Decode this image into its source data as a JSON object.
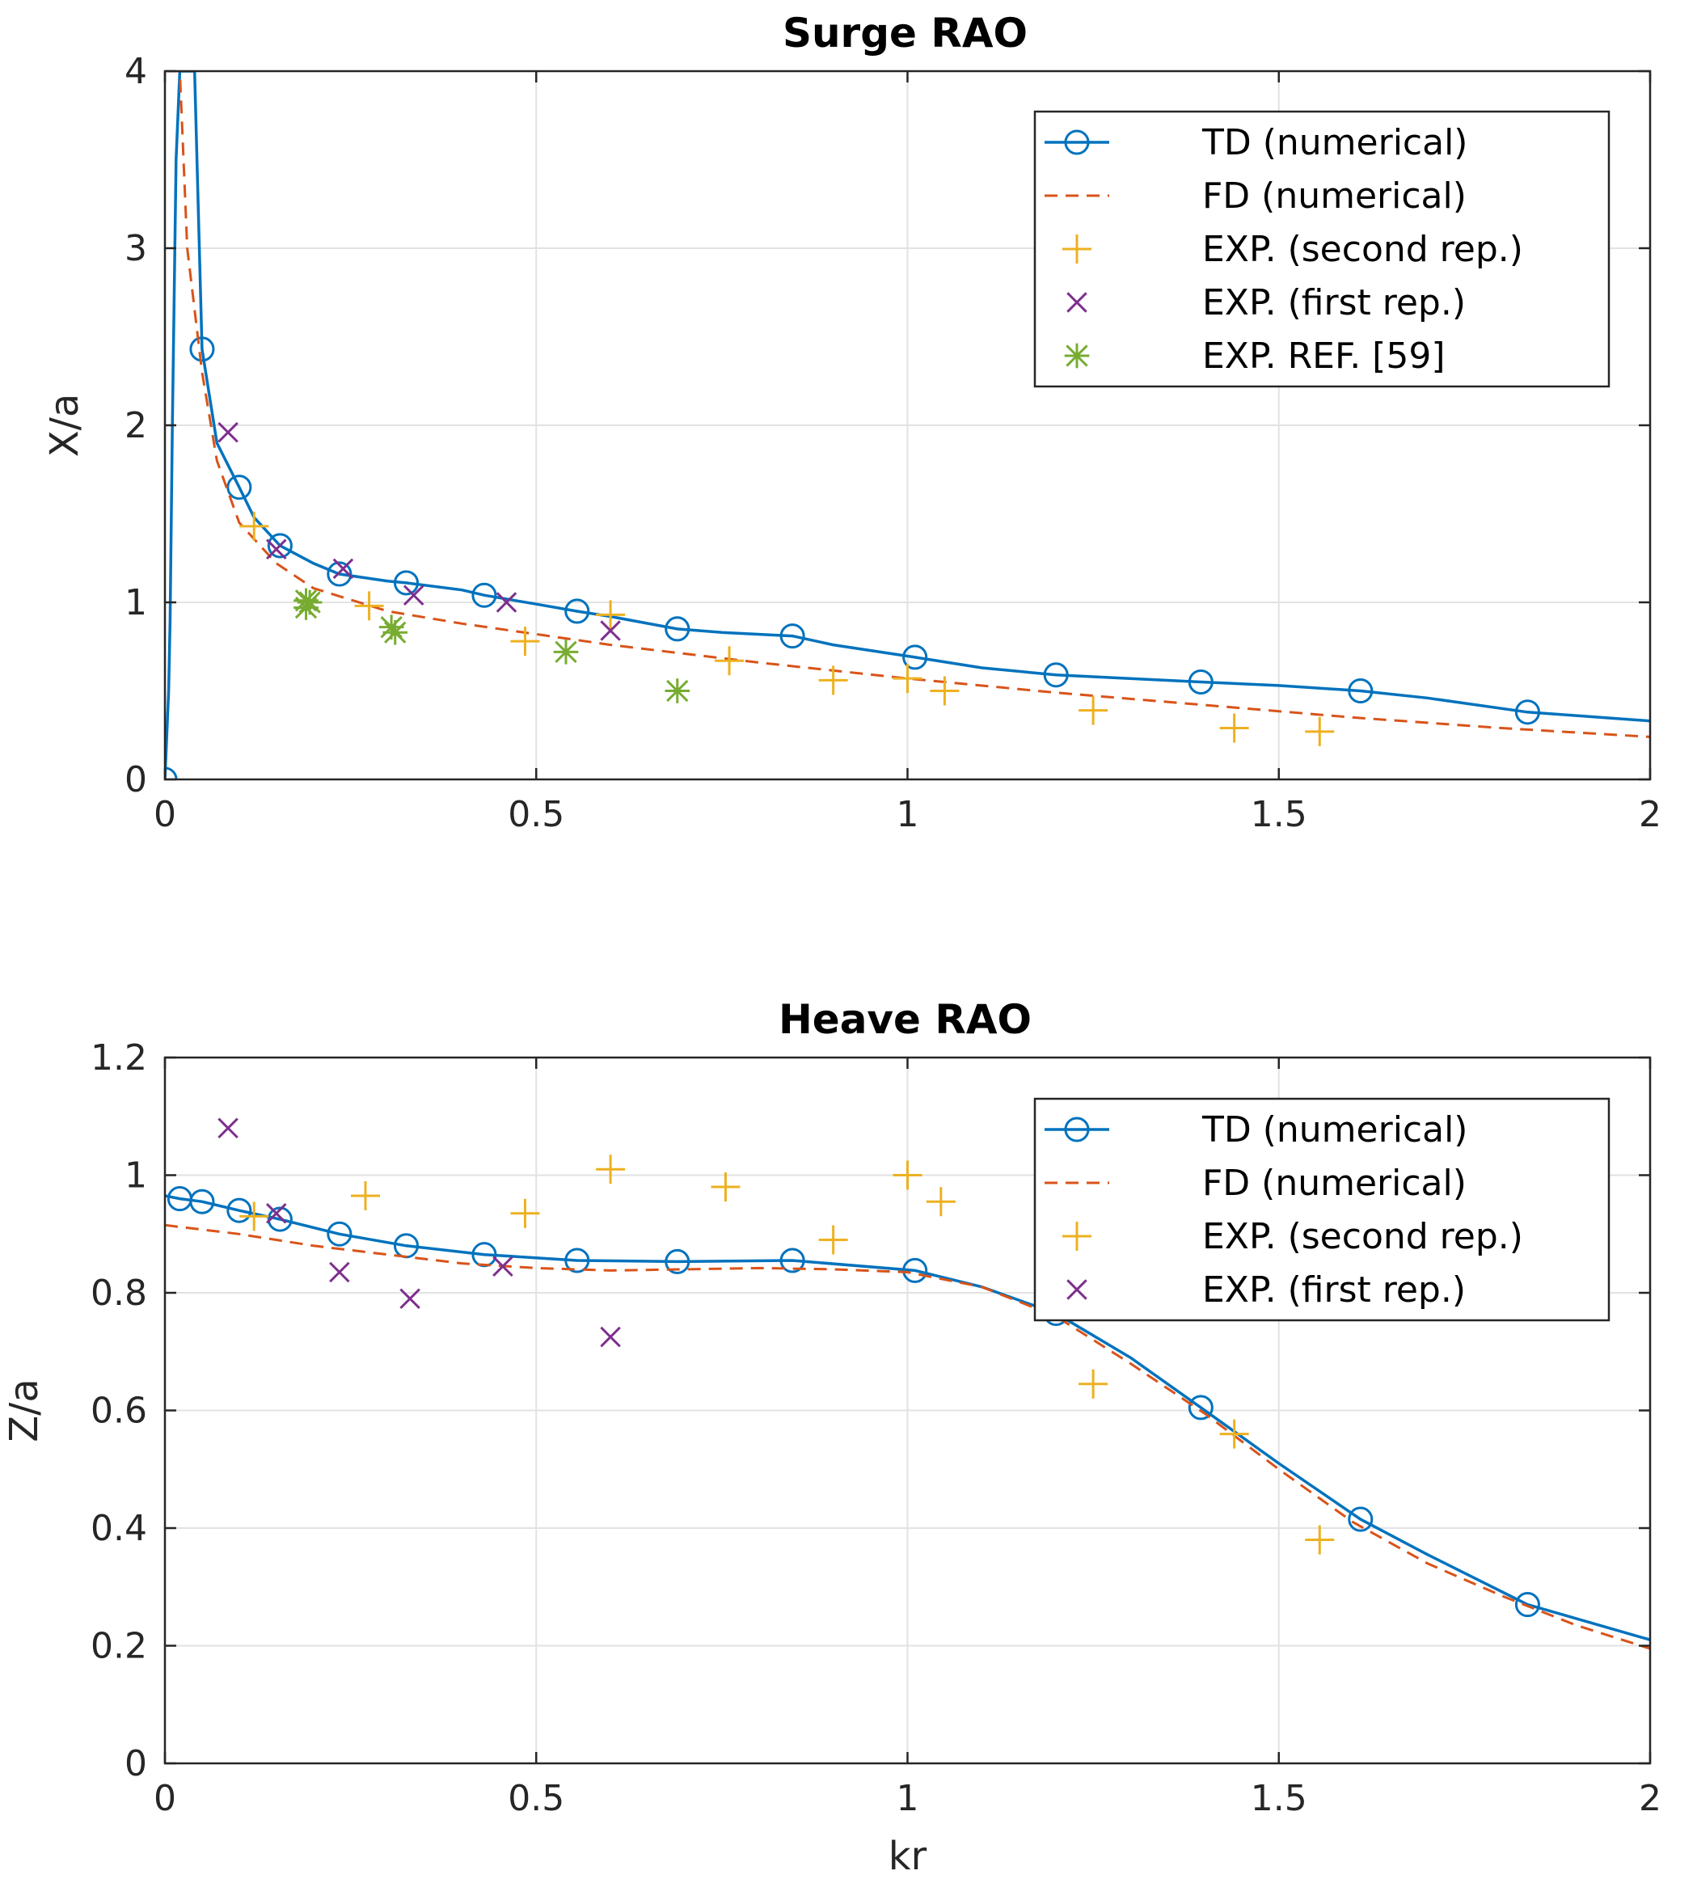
{
  "colors": {
    "td": "#0072bd",
    "fd": "#d95319",
    "exp_second": "#edb120",
    "exp_first": "#7e2f8e",
    "exp_ref": "#77ac30"
  },
  "chart_data": [
    {
      "type": "line",
      "title": "Surge RAO",
      "xlabel": "",
      "ylabel": "X/a",
      "xlim": [
        0,
        2
      ],
      "ylim": [
        0,
        4
      ],
      "xticks": [
        "0",
        "0.5",
        "1",
        "1.5",
        "2"
      ],
      "yticks": [
        "0",
        "1",
        "2",
        "3",
        "4"
      ],
      "grid": true,
      "legend_position": "top-right",
      "series": [
        {
          "key": "td",
          "name": "TD (numerical)",
          "style": "line-circle",
          "x": [
            0.0,
            0.005,
            0.007,
            0.01,
            0.015,
            0.02,
            0.04,
            0.05,
            0.07,
            0.1,
            0.12,
            0.155,
            0.2,
            0.235,
            0.3,
            0.325,
            0.4,
            0.43,
            0.5,
            0.555,
            0.6,
            0.69,
            0.75,
            0.845,
            0.9,
            1.01,
            1.1,
            1.2,
            1.3,
            1.395,
            1.5,
            1.61,
            1.7,
            1.835,
            2.0
          ],
          "y": [
            0.0,
            0.5,
            0.9,
            2.0,
            3.5,
            4.0,
            4.0,
            2.43,
            1.9,
            1.65,
            1.48,
            1.32,
            1.22,
            1.16,
            1.12,
            1.11,
            1.07,
            1.04,
            0.99,
            0.95,
            0.92,
            0.85,
            0.83,
            0.81,
            0.76,
            0.69,
            0.63,
            0.59,
            0.57,
            0.55,
            0.53,
            0.5,
            0.46,
            0.38,
            0.33
          ],
          "markers_x": [
            0.0,
            0.05,
            0.1,
            0.155,
            0.235,
            0.325,
            0.43,
            0.555,
            0.69,
            0.845,
            1.01,
            1.2,
            1.395,
            1.61,
            1.835
          ],
          "markers_y": [
            0.0,
            2.43,
            1.65,
            1.32,
            1.16,
            1.11,
            1.04,
            0.95,
            0.85,
            0.81,
            0.69,
            0.59,
            0.55,
            0.5,
            0.38
          ]
        },
        {
          "key": "fd",
          "name": "FD (numerical)",
          "style": "dashed",
          "x": [
            0.003,
            0.02,
            0.03,
            0.05,
            0.07,
            0.1,
            0.15,
            0.2,
            0.3,
            0.4,
            0.5,
            0.6,
            0.8,
            1.0,
            1.2,
            1.4,
            1.6,
            1.8,
            2.0
          ],
          "y": [
            4.0,
            4.0,
            3.0,
            2.3,
            1.8,
            1.45,
            1.22,
            1.08,
            0.95,
            0.88,
            0.82,
            0.76,
            0.66,
            0.57,
            0.49,
            0.42,
            0.35,
            0.29,
            0.24
          ]
        },
        {
          "key": "exp_second",
          "name": "EXP. (second rep.)",
          "style": "plus",
          "x": [
            0.12,
            0.275,
            0.485,
            0.6,
            0.76,
            0.9,
            1.0,
            1.05,
            1.25,
            1.44,
            1.555
          ],
          "y": [
            1.43,
            0.98,
            0.78,
            0.93,
            0.67,
            0.56,
            0.57,
            0.5,
            0.39,
            0.29,
            0.27
          ]
        },
        {
          "key": "exp_first",
          "name": "EXP. (first rep.)",
          "style": "cross",
          "x": [
            0.085,
            0.15,
            0.24,
            0.335,
            0.46,
            0.6
          ],
          "y": [
            1.96,
            1.3,
            1.19,
            1.04,
            1.0,
            0.84
          ]
        },
        {
          "key": "exp_ref",
          "name": "EXP. REF. [59]",
          "style": "asterisk",
          "x": [
            0.19,
            0.195,
            0.19,
            0.305,
            0.31,
            0.54,
            0.69
          ],
          "y": [
            1.01,
            1.0,
            0.97,
            0.86,
            0.83,
            0.72,
            0.5
          ]
        }
      ]
    },
    {
      "type": "line",
      "title": "Heave RAO",
      "xlabel": "kr",
      "ylabel": "Z/a",
      "xlim": [
        0,
        2
      ],
      "ylim": [
        0,
        1.2
      ],
      "xticks": [
        "0",
        "0.5",
        "1",
        "1.5",
        "2"
      ],
      "yticks": [
        "0",
        "0.2",
        "0.4",
        "0.6",
        "0.8",
        "1",
        "1.2"
      ],
      "grid": true,
      "legend_position": "top-right",
      "series": [
        {
          "key": "td",
          "name": "TD (numerical)",
          "style": "line-circle",
          "x": [
            0.0,
            0.02,
            0.05,
            0.1,
            0.155,
            0.235,
            0.325,
            0.43,
            0.555,
            0.69,
            0.845,
            1.01,
            1.1,
            1.2,
            1.3,
            1.395,
            1.5,
            1.61,
            1.7,
            1.835,
            2.0
          ],
          "y": [
            0.965,
            0.96,
            0.955,
            0.94,
            0.925,
            0.9,
            0.88,
            0.865,
            0.855,
            0.853,
            0.855,
            0.838,
            0.81,
            0.765,
            0.69,
            0.605,
            0.51,
            0.415,
            0.355,
            0.27,
            0.21
          ],
          "markers_x": [
            0.02,
            0.05,
            0.1,
            0.155,
            0.235,
            0.325,
            0.43,
            0.555,
            0.69,
            0.845,
            1.01,
            1.2,
            1.395,
            1.61,
            1.835
          ],
          "markers_y": [
            0.96,
            0.955,
            0.94,
            0.925,
            0.9,
            0.88,
            0.865,
            0.855,
            0.853,
            0.855,
            0.838,
            0.765,
            0.605,
            0.415,
            0.27
          ]
        },
        {
          "key": "fd",
          "name": "FD (numerical)",
          "style": "dashed",
          "x": [
            0.0,
            0.1,
            0.2,
            0.3,
            0.4,
            0.5,
            0.6,
            0.7,
            0.8,
            0.9,
            1.0,
            1.1,
            1.2,
            1.3,
            1.4,
            1.5,
            1.6,
            1.7,
            1.8,
            1.9,
            2.0
          ],
          "y": [
            0.915,
            0.9,
            0.88,
            0.865,
            0.85,
            0.842,
            0.838,
            0.84,
            0.842,
            0.84,
            0.835,
            0.81,
            0.76,
            0.68,
            0.595,
            0.5,
            0.41,
            0.34,
            0.285,
            0.235,
            0.195
          ]
        },
        {
          "key": "exp_second",
          "name": "EXP. (second rep.)",
          "style": "plus",
          "x": [
            0.12,
            0.27,
            0.485,
            0.6,
            0.755,
            0.9,
            1.0,
            1.045,
            1.25,
            1.44,
            1.555
          ],
          "y": [
            0.93,
            0.965,
            0.935,
            1.01,
            0.98,
            0.89,
            1.0,
            0.955,
            0.645,
            0.56,
            0.38
          ]
        },
        {
          "key": "exp_first",
          "name": "EXP. (first rep.)",
          "style": "cross",
          "x": [
            0.085,
            0.15,
            0.235,
            0.33,
            0.455,
            0.6
          ],
          "y": [
            1.08,
            0.935,
            0.835,
            0.79,
            0.845,
            0.725
          ]
        }
      ]
    }
  ]
}
